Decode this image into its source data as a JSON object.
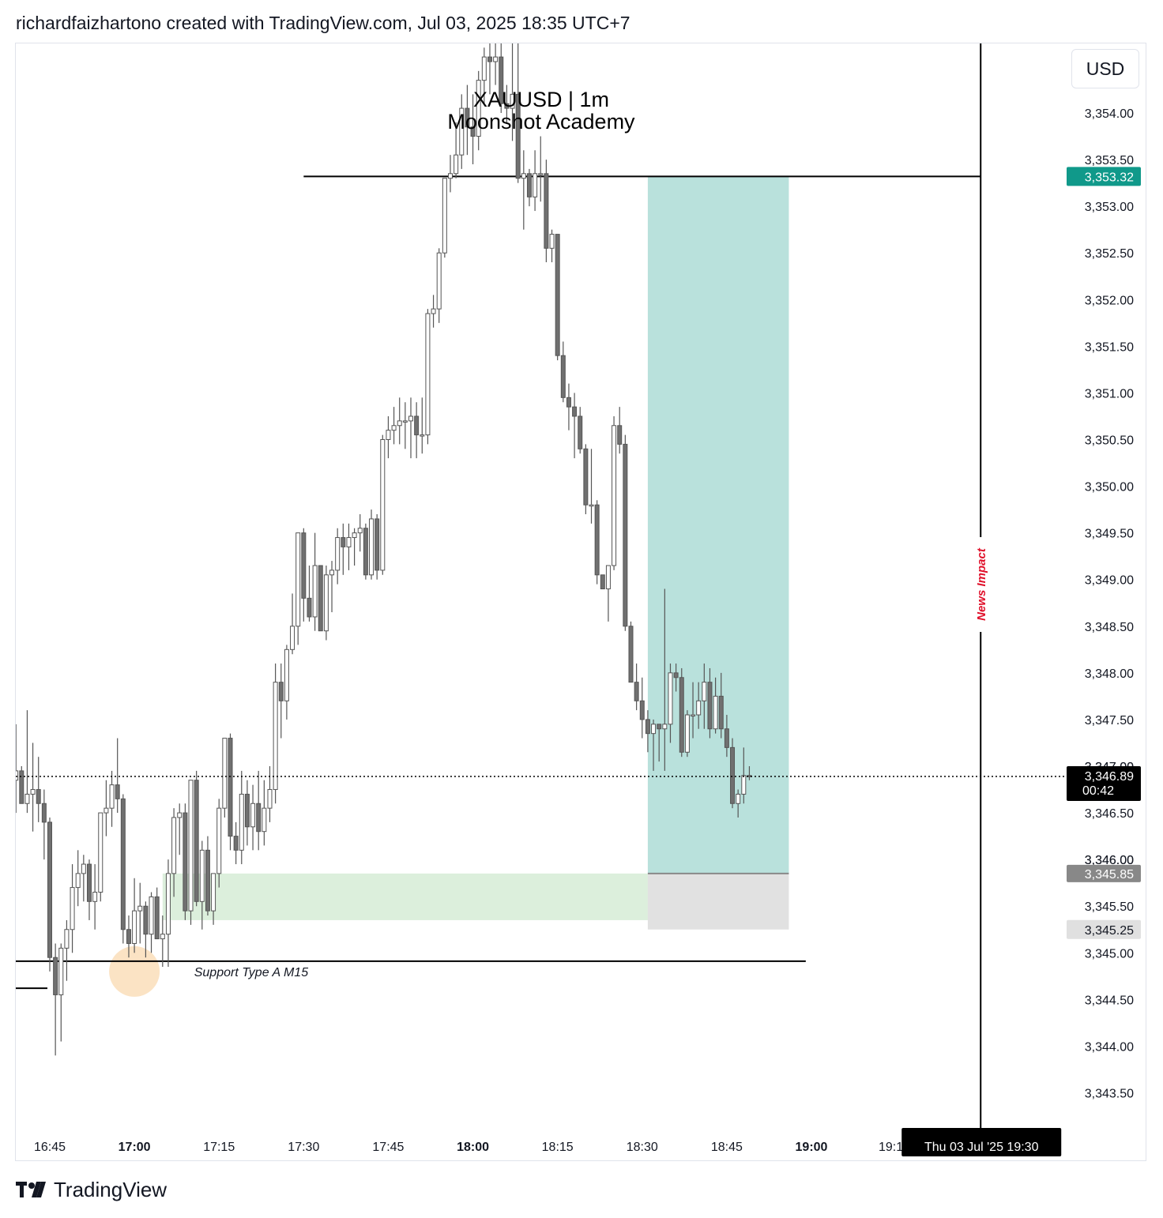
{
  "header": {
    "attribution": "richardfaizhartono created with TradingView.com, Jul 03, 2025 18:35 UTC+7"
  },
  "toolbar": {
    "currency": "USD"
  },
  "footer": {
    "brand": "TradingView"
  },
  "colors": {
    "candle_up_fill": "#ffffff",
    "candle_down_fill": "#707070",
    "candle_stroke": "#555555",
    "target_zone": "#b9e1dc",
    "stop_zone": "#dcdcdc",
    "support_zone": "#dcefdc",
    "last_price_bg": "#000000",
    "target_label_bg": "#10998a",
    "entry_label_bg": "#888888",
    "stop_label_bg": "#e0e0e0",
    "news_text": "#e0102a",
    "highlight_circle": "#fbe3c4"
  },
  "chart_data": {
    "type": "candlestick",
    "symbol_title": "XAUUSD | 1m",
    "watermark": "Moonshot Academy",
    "y_axis": {
      "range": [
        3343.2,
        3354.74
      ],
      "tick_labels": [
        "3,354.00",
        "3,353.50",
        "3,353.00",
        "3,352.50",
        "3,352.00",
        "3,351.50",
        "3,351.00",
        "3,350.50",
        "3,350.00",
        "3,349.50",
        "3,349.00",
        "3,348.50",
        "3,348.00",
        "3,347.50",
        "3,347.00",
        "3,346.50",
        "3,346.00",
        "3,345.50",
        "3,345.00",
        "3,344.50",
        "3,344.00",
        "3,343.50"
      ]
    },
    "x_axis": {
      "start_time": "16:39",
      "end_time": "19:20",
      "ticks": [
        {
          "time": "16:45",
          "label": "16:45",
          "bold": false
        },
        {
          "time": "17:00",
          "label": "17:00",
          "bold": true
        },
        {
          "time": "17:15",
          "label": "17:15",
          "bold": false
        },
        {
          "time": "17:30",
          "label": "17:30",
          "bold": false
        },
        {
          "time": "17:45",
          "label": "17:45",
          "bold": false
        },
        {
          "time": "18:00",
          "label": "18:00",
          "bold": true
        },
        {
          "time": "18:15",
          "label": "18:15",
          "bold": false
        },
        {
          "time": "18:30",
          "label": "18:30",
          "bold": false
        },
        {
          "time": "18:45",
          "label": "18:45",
          "bold": false
        },
        {
          "time": "19:00",
          "label": "19:00",
          "bold": true
        }
      ],
      "partial_tick_label": "19:1",
      "crosshair_label": "Thu 03 Jul '25   19:30"
    },
    "price_labels": {
      "target": "3,353.32",
      "last_price": "3,346.89",
      "countdown": "00:42",
      "entry": "3,345.85",
      "stop": "3,345.25",
      "partial_hidden_tick": "3,347.00",
      "partial_hidden_tick2": "3,346.00"
    },
    "annotations": {
      "support_label": "Support Type A M15",
      "news_label": "News Impact",
      "resistance_line_price": 3353.32,
      "resistance_line_start": "17:30",
      "support_line_price": 3344.91,
      "support_line_end": "18:59",
      "short_line_price": 3344.62,
      "support_zone": {
        "from_time": "17:05",
        "to_time": "18:31",
        "top": 3345.85,
        "bottom": 3345.35
      },
      "position": {
        "from_time": "18:31",
        "to_time": "18:56",
        "target": 3353.32,
        "entry": 3345.85,
        "stop": 3345.25
      },
      "news_time": "19:30",
      "highlight": {
        "time": "17:00",
        "price": 3344.8
      }
    },
    "candles": [
      {
        "t": "16:39",
        "o": 3346.85,
        "h": 3347.45,
        "l": 3346.5,
        "c": 3346.95
      },
      {
        "t": "16:40",
        "o": 3346.95,
        "h": 3347.0,
        "l": 3346.65,
        "c": 3346.6
      },
      {
        "t": "16:41",
        "o": 3346.6,
        "h": 3347.6,
        "l": 3346.5,
        "c": 3346.7
      },
      {
        "t": "16:42",
        "o": 3346.7,
        "h": 3347.25,
        "l": 3346.3,
        "c": 3346.75
      },
      {
        "t": "16:43",
        "o": 3346.75,
        "h": 3347.1,
        "l": 3346.4,
        "c": 3346.6
      },
      {
        "t": "16:44",
        "o": 3346.6,
        "h": 3346.75,
        "l": 3346.0,
        "c": 3346.4
      },
      {
        "t": "16:45",
        "o": 3346.4,
        "h": 3346.45,
        "l": 3344.8,
        "c": 3344.95
      },
      {
        "t": "16:46",
        "o": 3344.95,
        "h": 3345.1,
        "l": 3343.9,
        "c": 3344.55
      },
      {
        "t": "16:47",
        "o": 3344.55,
        "h": 3345.1,
        "l": 3344.05,
        "c": 3345.05
      },
      {
        "t": "16:48",
        "o": 3345.05,
        "h": 3345.35,
        "l": 3344.7,
        "c": 3345.25
      },
      {
        "t": "16:49",
        "o": 3345.25,
        "h": 3345.95,
        "l": 3345.0,
        "c": 3345.7
      },
      {
        "t": "16:50",
        "o": 3345.7,
        "h": 3346.1,
        "l": 3345.5,
        "c": 3345.85
      },
      {
        "t": "16:51",
        "o": 3345.85,
        "h": 3346.05,
        "l": 3345.55,
        "c": 3345.95
      },
      {
        "t": "16:52",
        "o": 3345.95,
        "h": 3346.0,
        "l": 3345.35,
        "c": 3345.55
      },
      {
        "t": "16:53",
        "o": 3345.55,
        "h": 3345.95,
        "l": 3345.25,
        "c": 3345.65
      },
      {
        "t": "16:54",
        "o": 3345.65,
        "h": 3346.5,
        "l": 3345.55,
        "c": 3346.5
      },
      {
        "t": "16:55",
        "o": 3346.5,
        "h": 3346.85,
        "l": 3346.25,
        "c": 3346.55
      },
      {
        "t": "16:56",
        "o": 3346.55,
        "h": 3346.95,
        "l": 3346.35,
        "c": 3346.8
      },
      {
        "t": "16:57",
        "o": 3346.8,
        "h": 3347.3,
        "l": 3346.5,
        "c": 3346.65
      },
      {
        "t": "16:58",
        "o": 3346.65,
        "h": 3346.7,
        "l": 3345.1,
        "c": 3345.25
      },
      {
        "t": "16:59",
        "o": 3345.25,
        "h": 3345.4,
        "l": 3344.95,
        "c": 3345.1
      },
      {
        "t": "17:00",
        "o": 3345.1,
        "h": 3345.8,
        "l": 3345.0,
        "c": 3345.45
      },
      {
        "t": "17:01",
        "o": 3345.45,
        "h": 3345.75,
        "l": 3345.1,
        "c": 3345.5
      },
      {
        "t": "17:02",
        "o": 3345.5,
        "h": 3345.55,
        "l": 3344.95,
        "c": 3345.2
      },
      {
        "t": "17:03",
        "o": 3345.2,
        "h": 3345.65,
        "l": 3345.0,
        "c": 3345.6
      },
      {
        "t": "17:04",
        "o": 3345.6,
        "h": 3345.7,
        "l": 3345.15,
        "c": 3345.15
      },
      {
        "t": "17:05",
        "o": 3345.15,
        "h": 3345.4,
        "l": 3344.85,
        "c": 3345.2
      },
      {
        "t": "17:06",
        "o": 3345.2,
        "h": 3346.0,
        "l": 3344.85,
        "c": 3345.85
      },
      {
        "t": "17:07",
        "o": 3345.85,
        "h": 3346.55,
        "l": 3345.6,
        "c": 3346.45
      },
      {
        "t": "17:08",
        "o": 3346.45,
        "h": 3346.6,
        "l": 3346.05,
        "c": 3346.5
      },
      {
        "t": "17:09",
        "o": 3346.5,
        "h": 3346.6,
        "l": 3345.35,
        "c": 3345.45
      },
      {
        "t": "17:10",
        "o": 3345.45,
        "h": 3346.85,
        "l": 3345.3,
        "c": 3346.85
      },
      {
        "t": "17:11",
        "o": 3346.85,
        "h": 3346.95,
        "l": 3345.5,
        "c": 3345.55
      },
      {
        "t": "17:12",
        "o": 3345.55,
        "h": 3346.2,
        "l": 3345.25,
        "c": 3346.1
      },
      {
        "t": "17:13",
        "o": 3346.1,
        "h": 3346.25,
        "l": 3345.4,
        "c": 3345.45
      },
      {
        "t": "17:14",
        "o": 3345.45,
        "h": 3345.85,
        "l": 3345.3,
        "c": 3345.85
      },
      {
        "t": "17:15",
        "o": 3345.85,
        "h": 3346.65,
        "l": 3345.7,
        "c": 3346.55
      },
      {
        "t": "17:16",
        "o": 3346.55,
        "h": 3347.3,
        "l": 3346.45,
        "c": 3347.3
      },
      {
        "t": "17:17",
        "o": 3347.3,
        "h": 3347.35,
        "l": 3346.1,
        "c": 3346.25
      },
      {
        "t": "17:18",
        "o": 3346.25,
        "h": 3346.4,
        "l": 3345.95,
        "c": 3346.1
      },
      {
        "t": "17:19",
        "o": 3346.1,
        "h": 3346.95,
        "l": 3345.95,
        "c": 3346.7
      },
      {
        "t": "17:20",
        "o": 3346.7,
        "h": 3346.85,
        "l": 3346.15,
        "c": 3346.35
      },
      {
        "t": "17:21",
        "o": 3346.35,
        "h": 3346.8,
        "l": 3346.1,
        "c": 3346.6
      },
      {
        "t": "17:22",
        "o": 3346.6,
        "h": 3346.95,
        "l": 3346.1,
        "c": 3346.3
      },
      {
        "t": "17:23",
        "o": 3346.3,
        "h": 3346.85,
        "l": 3346.15,
        "c": 3346.55
      },
      {
        "t": "17:24",
        "o": 3346.55,
        "h": 3347.0,
        "l": 3346.4,
        "c": 3346.75
      },
      {
        "t": "17:25",
        "o": 3346.75,
        "h": 3348.1,
        "l": 3346.6,
        "c": 3347.9
      },
      {
        "t": "17:26",
        "o": 3347.9,
        "h": 3348.1,
        "l": 3347.3,
        "c": 3347.7
      },
      {
        "t": "17:27",
        "o": 3347.7,
        "h": 3348.3,
        "l": 3347.5,
        "c": 3348.25
      },
      {
        "t": "17:28",
        "o": 3348.25,
        "h": 3348.85,
        "l": 3348.2,
        "c": 3348.5
      },
      {
        "t": "17:29",
        "o": 3348.5,
        "h": 3349.5,
        "l": 3348.3,
        "c": 3349.5
      },
      {
        "t": "17:30",
        "o": 3349.5,
        "h": 3349.55,
        "l": 3348.55,
        "c": 3348.8
      },
      {
        "t": "17:31",
        "o": 3348.8,
        "h": 3349.15,
        "l": 3348.55,
        "c": 3348.6
      },
      {
        "t": "17:32",
        "o": 3348.6,
        "h": 3349.5,
        "l": 3348.45,
        "c": 3349.15
      },
      {
        "t": "17:33",
        "o": 3349.15,
        "h": 3349.15,
        "l": 3348.45,
        "c": 3348.45
      },
      {
        "t": "17:34",
        "o": 3348.45,
        "h": 3349.15,
        "l": 3348.35,
        "c": 3349.05
      },
      {
        "t": "17:35",
        "o": 3349.05,
        "h": 3349.2,
        "l": 3348.65,
        "c": 3349.1
      },
      {
        "t": "17:36",
        "o": 3349.1,
        "h": 3349.55,
        "l": 3348.95,
        "c": 3349.45
      },
      {
        "t": "17:37",
        "o": 3349.45,
        "h": 3349.6,
        "l": 3349.05,
        "c": 3349.35
      },
      {
        "t": "17:38",
        "o": 3349.35,
        "h": 3349.6,
        "l": 3349.1,
        "c": 3349.45
      },
      {
        "t": "17:39",
        "o": 3349.45,
        "h": 3349.55,
        "l": 3349.15,
        "c": 3349.5
      },
      {
        "t": "17:40",
        "o": 3349.5,
        "h": 3349.7,
        "l": 3349.3,
        "c": 3349.55
      },
      {
        "t": "17:41",
        "o": 3349.55,
        "h": 3349.6,
        "l": 3349.0,
        "c": 3349.05
      },
      {
        "t": "17:42",
        "o": 3349.05,
        "h": 3349.75,
        "l": 3349.0,
        "c": 3349.65
      },
      {
        "t": "17:43",
        "o": 3349.65,
        "h": 3349.7,
        "l": 3349.0,
        "c": 3349.1
      },
      {
        "t": "17:44",
        "o": 3349.1,
        "h": 3350.55,
        "l": 3349.05,
        "c": 3350.5
      },
      {
        "t": "17:45",
        "o": 3350.5,
        "h": 3350.75,
        "l": 3350.3,
        "c": 3350.6
      },
      {
        "t": "17:46",
        "o": 3350.6,
        "h": 3350.85,
        "l": 3350.45,
        "c": 3350.65
      },
      {
        "t": "17:47",
        "o": 3350.65,
        "h": 3350.95,
        "l": 3350.45,
        "c": 3350.7
      },
      {
        "t": "17:48",
        "o": 3350.7,
        "h": 3350.9,
        "l": 3350.4,
        "c": 3350.7
      },
      {
        "t": "17:49",
        "o": 3350.7,
        "h": 3350.95,
        "l": 3350.3,
        "c": 3350.75
      },
      {
        "t": "17:50",
        "o": 3350.75,
        "h": 3350.9,
        "l": 3350.3,
        "c": 3350.55
      },
      {
        "t": "17:51",
        "o": 3350.55,
        "h": 3350.95,
        "l": 3350.35,
        "c": 3350.55
      },
      {
        "t": "17:52",
        "o": 3350.55,
        "h": 3351.9,
        "l": 3350.45,
        "c": 3351.85
      },
      {
        "t": "17:53",
        "o": 3351.85,
        "h": 3352.05,
        "l": 3351.7,
        "c": 3351.9
      },
      {
        "t": "17:54",
        "o": 3351.9,
        "h": 3352.55,
        "l": 3351.75,
        "c": 3352.5
      },
      {
        "t": "17:55",
        "o": 3352.5,
        "h": 3353.3,
        "l": 3352.45,
        "c": 3353.3
      },
      {
        "t": "17:56",
        "o": 3353.3,
        "h": 3353.55,
        "l": 3353.15,
        "c": 3353.35
      },
      {
        "t": "17:57",
        "o": 3353.35,
        "h": 3353.9,
        "l": 3353.3,
        "c": 3353.55
      },
      {
        "t": "17:58",
        "o": 3353.55,
        "h": 3354.2,
        "l": 3353.4,
        "c": 3354.05
      },
      {
        "t": "17:59",
        "o": 3354.05,
        "h": 3354.3,
        "l": 3353.55,
        "c": 3353.85
      },
      {
        "t": "18:00",
        "o": 3353.85,
        "h": 3354.2,
        "l": 3353.45,
        "c": 3353.75
      },
      {
        "t": "18:01",
        "o": 3353.75,
        "h": 3354.45,
        "l": 3353.6,
        "c": 3354.35
      },
      {
        "t": "18:02",
        "o": 3354.35,
        "h": 3354.7,
        "l": 3354.1,
        "c": 3354.6
      },
      {
        "t": "18:03",
        "o": 3354.6,
        "h": 3354.75,
        "l": 3354.2,
        "c": 3354.55
      },
      {
        "t": "18:04",
        "o": 3354.55,
        "h": 3354.75,
        "l": 3354.3,
        "c": 3354.6
      },
      {
        "t": "18:05",
        "o": 3354.6,
        "h": 3354.75,
        "l": 3354.0,
        "c": 3354.1
      },
      {
        "t": "18:06",
        "o": 3354.1,
        "h": 3354.3,
        "l": 3353.9,
        "c": 3354.05
      },
      {
        "t": "18:07",
        "o": 3354.05,
        "h": 3354.75,
        "l": 3353.7,
        "c": 3354.2
      },
      {
        "t": "18:08",
        "o": 3354.2,
        "h": 3354.75,
        "l": 3353.25,
        "c": 3353.3
      },
      {
        "t": "18:09",
        "o": 3353.3,
        "h": 3353.6,
        "l": 3352.75,
        "c": 3353.35
      },
      {
        "t": "18:10",
        "o": 3353.35,
        "h": 3353.4,
        "l": 3353.0,
        "c": 3353.1
      },
      {
        "t": "18:11",
        "o": 3353.1,
        "h": 3353.6,
        "l": 3352.95,
        "c": 3353.35
      },
      {
        "t": "18:12",
        "o": 3353.35,
        "h": 3353.75,
        "l": 3353.05,
        "c": 3353.35
      },
      {
        "t": "18:13",
        "o": 3353.35,
        "h": 3353.5,
        "l": 3352.4,
        "c": 3352.55
      },
      {
        "t": "18:14",
        "o": 3352.55,
        "h": 3352.75,
        "l": 3352.4,
        "c": 3352.7
      },
      {
        "t": "18:15",
        "o": 3352.7,
        "h": 3352.7,
        "l": 3351.35,
        "c": 3351.4
      },
      {
        "t": "18:16",
        "o": 3351.4,
        "h": 3351.55,
        "l": 3350.9,
        "c": 3350.95
      },
      {
        "t": "18:17",
        "o": 3350.95,
        "h": 3351.1,
        "l": 3350.6,
        "c": 3350.85
      },
      {
        "t": "18:18",
        "o": 3350.85,
        "h": 3351.0,
        "l": 3350.3,
        "c": 3350.75
      },
      {
        "t": "18:19",
        "o": 3350.75,
        "h": 3350.85,
        "l": 3350.35,
        "c": 3350.4
      },
      {
        "t": "18:20",
        "o": 3350.4,
        "h": 3350.45,
        "l": 3349.7,
        "c": 3349.8
      },
      {
        "t": "18:21",
        "o": 3349.8,
        "h": 3350.4,
        "l": 3349.6,
        "c": 3349.8
      },
      {
        "t": "18:22",
        "o": 3349.8,
        "h": 3349.85,
        "l": 3348.95,
        "c": 3349.05
      },
      {
        "t": "18:23",
        "o": 3349.05,
        "h": 3349.05,
        "l": 3348.9,
        "c": 3348.9
      },
      {
        "t": "18:24",
        "o": 3348.9,
        "h": 3349.15,
        "l": 3348.55,
        "c": 3349.15
      },
      {
        "t": "18:25",
        "o": 3349.15,
        "h": 3350.75,
        "l": 3349.1,
        "c": 3350.65
      },
      {
        "t": "18:26",
        "o": 3350.65,
        "h": 3350.85,
        "l": 3350.35,
        "c": 3350.45
      },
      {
        "t": "18:27",
        "o": 3350.45,
        "h": 3350.55,
        "l": 3348.45,
        "c": 3348.5
      },
      {
        "t": "18:28",
        "o": 3348.5,
        "h": 3348.55,
        "l": 3347.9,
        "c": 3347.9
      },
      {
        "t": "18:29",
        "o": 3347.9,
        "h": 3348.1,
        "l": 3347.6,
        "c": 3347.7
      },
      {
        "t": "18:30",
        "o": 3347.7,
        "h": 3347.95,
        "l": 3347.3,
        "c": 3347.5
      },
      {
        "t": "18:31",
        "o": 3347.5,
        "h": 3347.6,
        "l": 3347.15,
        "c": 3347.35
      },
      {
        "t": "18:32",
        "o": 3347.35,
        "h": 3347.5,
        "l": 3346.95,
        "c": 3347.45
      },
      {
        "t": "18:33",
        "o": 3347.45,
        "h": 3347.45,
        "l": 3347.05,
        "c": 3347.4
      },
      {
        "t": "18:34",
        "o": 3347.4,
        "h": 3348.9,
        "l": 3346.95,
        "c": 3347.45
      },
      {
        "t": "18:35",
        "o": 3347.45,
        "h": 3348.1,
        "l": 3347.25,
        "c": 3348.0
      },
      {
        "t": "18:36",
        "o": 3348.0,
        "h": 3348.1,
        "l": 3347.8,
        "c": 3347.95
      },
      {
        "t": "18:37",
        "o": 3347.95,
        "h": 3348.05,
        "l": 3347.1,
        "c": 3347.15
      },
      {
        "t": "18:38",
        "o": 3347.15,
        "h": 3347.6,
        "l": 3347.1,
        "c": 3347.55
      },
      {
        "t": "18:39",
        "o": 3347.55,
        "h": 3347.9,
        "l": 3347.3,
        "c": 3347.55
      },
      {
        "t": "18:40",
        "o": 3347.55,
        "h": 3347.9,
        "l": 3347.4,
        "c": 3347.7
      },
      {
        "t": "18:41",
        "o": 3347.7,
        "h": 3348.1,
        "l": 3347.4,
        "c": 3347.9
      },
      {
        "t": "18:42",
        "o": 3347.9,
        "h": 3348.05,
        "l": 3347.3,
        "c": 3347.4
      },
      {
        "t": "18:43",
        "o": 3347.4,
        "h": 3347.95,
        "l": 3347.35,
        "c": 3347.75
      },
      {
        "t": "18:44",
        "o": 3347.75,
        "h": 3348.0,
        "l": 3347.3,
        "c": 3347.4
      },
      {
        "t": "18:45",
        "o": 3347.4,
        "h": 3347.55,
        "l": 3347.1,
        "c": 3347.2
      },
      {
        "t": "18:46",
        "o": 3347.2,
        "h": 3347.3,
        "l": 3346.55,
        "c": 3346.6
      },
      {
        "t": "18:47",
        "o": 3346.6,
        "h": 3346.75,
        "l": 3346.45,
        "c": 3346.7
      },
      {
        "t": "18:48",
        "o": 3346.7,
        "h": 3347.2,
        "l": 3346.6,
        "c": 3346.9
      },
      {
        "t": "18:49",
        "o": 3346.9,
        "h": 3347.0,
        "l": 3346.85,
        "c": 3346.89
      }
    ]
  }
}
